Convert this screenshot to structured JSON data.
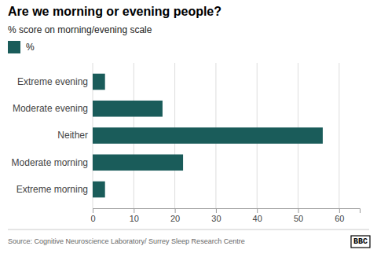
{
  "chart_data": {
    "type": "bar",
    "orientation": "horizontal",
    "title": "Are we morning or evening people?",
    "subtitle": "% score on morning/evening scale",
    "categories": [
      "Extreme evening",
      "Moderate evening",
      "Neither",
      "Moderate morning",
      "Extreme morning"
    ],
    "series": [
      {
        "name": "%",
        "color": "#1a5c5a",
        "values": [
          3,
          17,
          56,
          22,
          3
        ]
      }
    ],
    "xlim": [
      0,
      65
    ],
    "xticks": [
      0,
      10,
      20,
      30,
      40,
      50,
      60
    ],
    "grid": true,
    "legend": "top-left",
    "annotations": [
      "Source: Cognitive Neuroscience Laboratory/ Surrey Sleep Research Centre",
      "BBC"
    ]
  }
}
